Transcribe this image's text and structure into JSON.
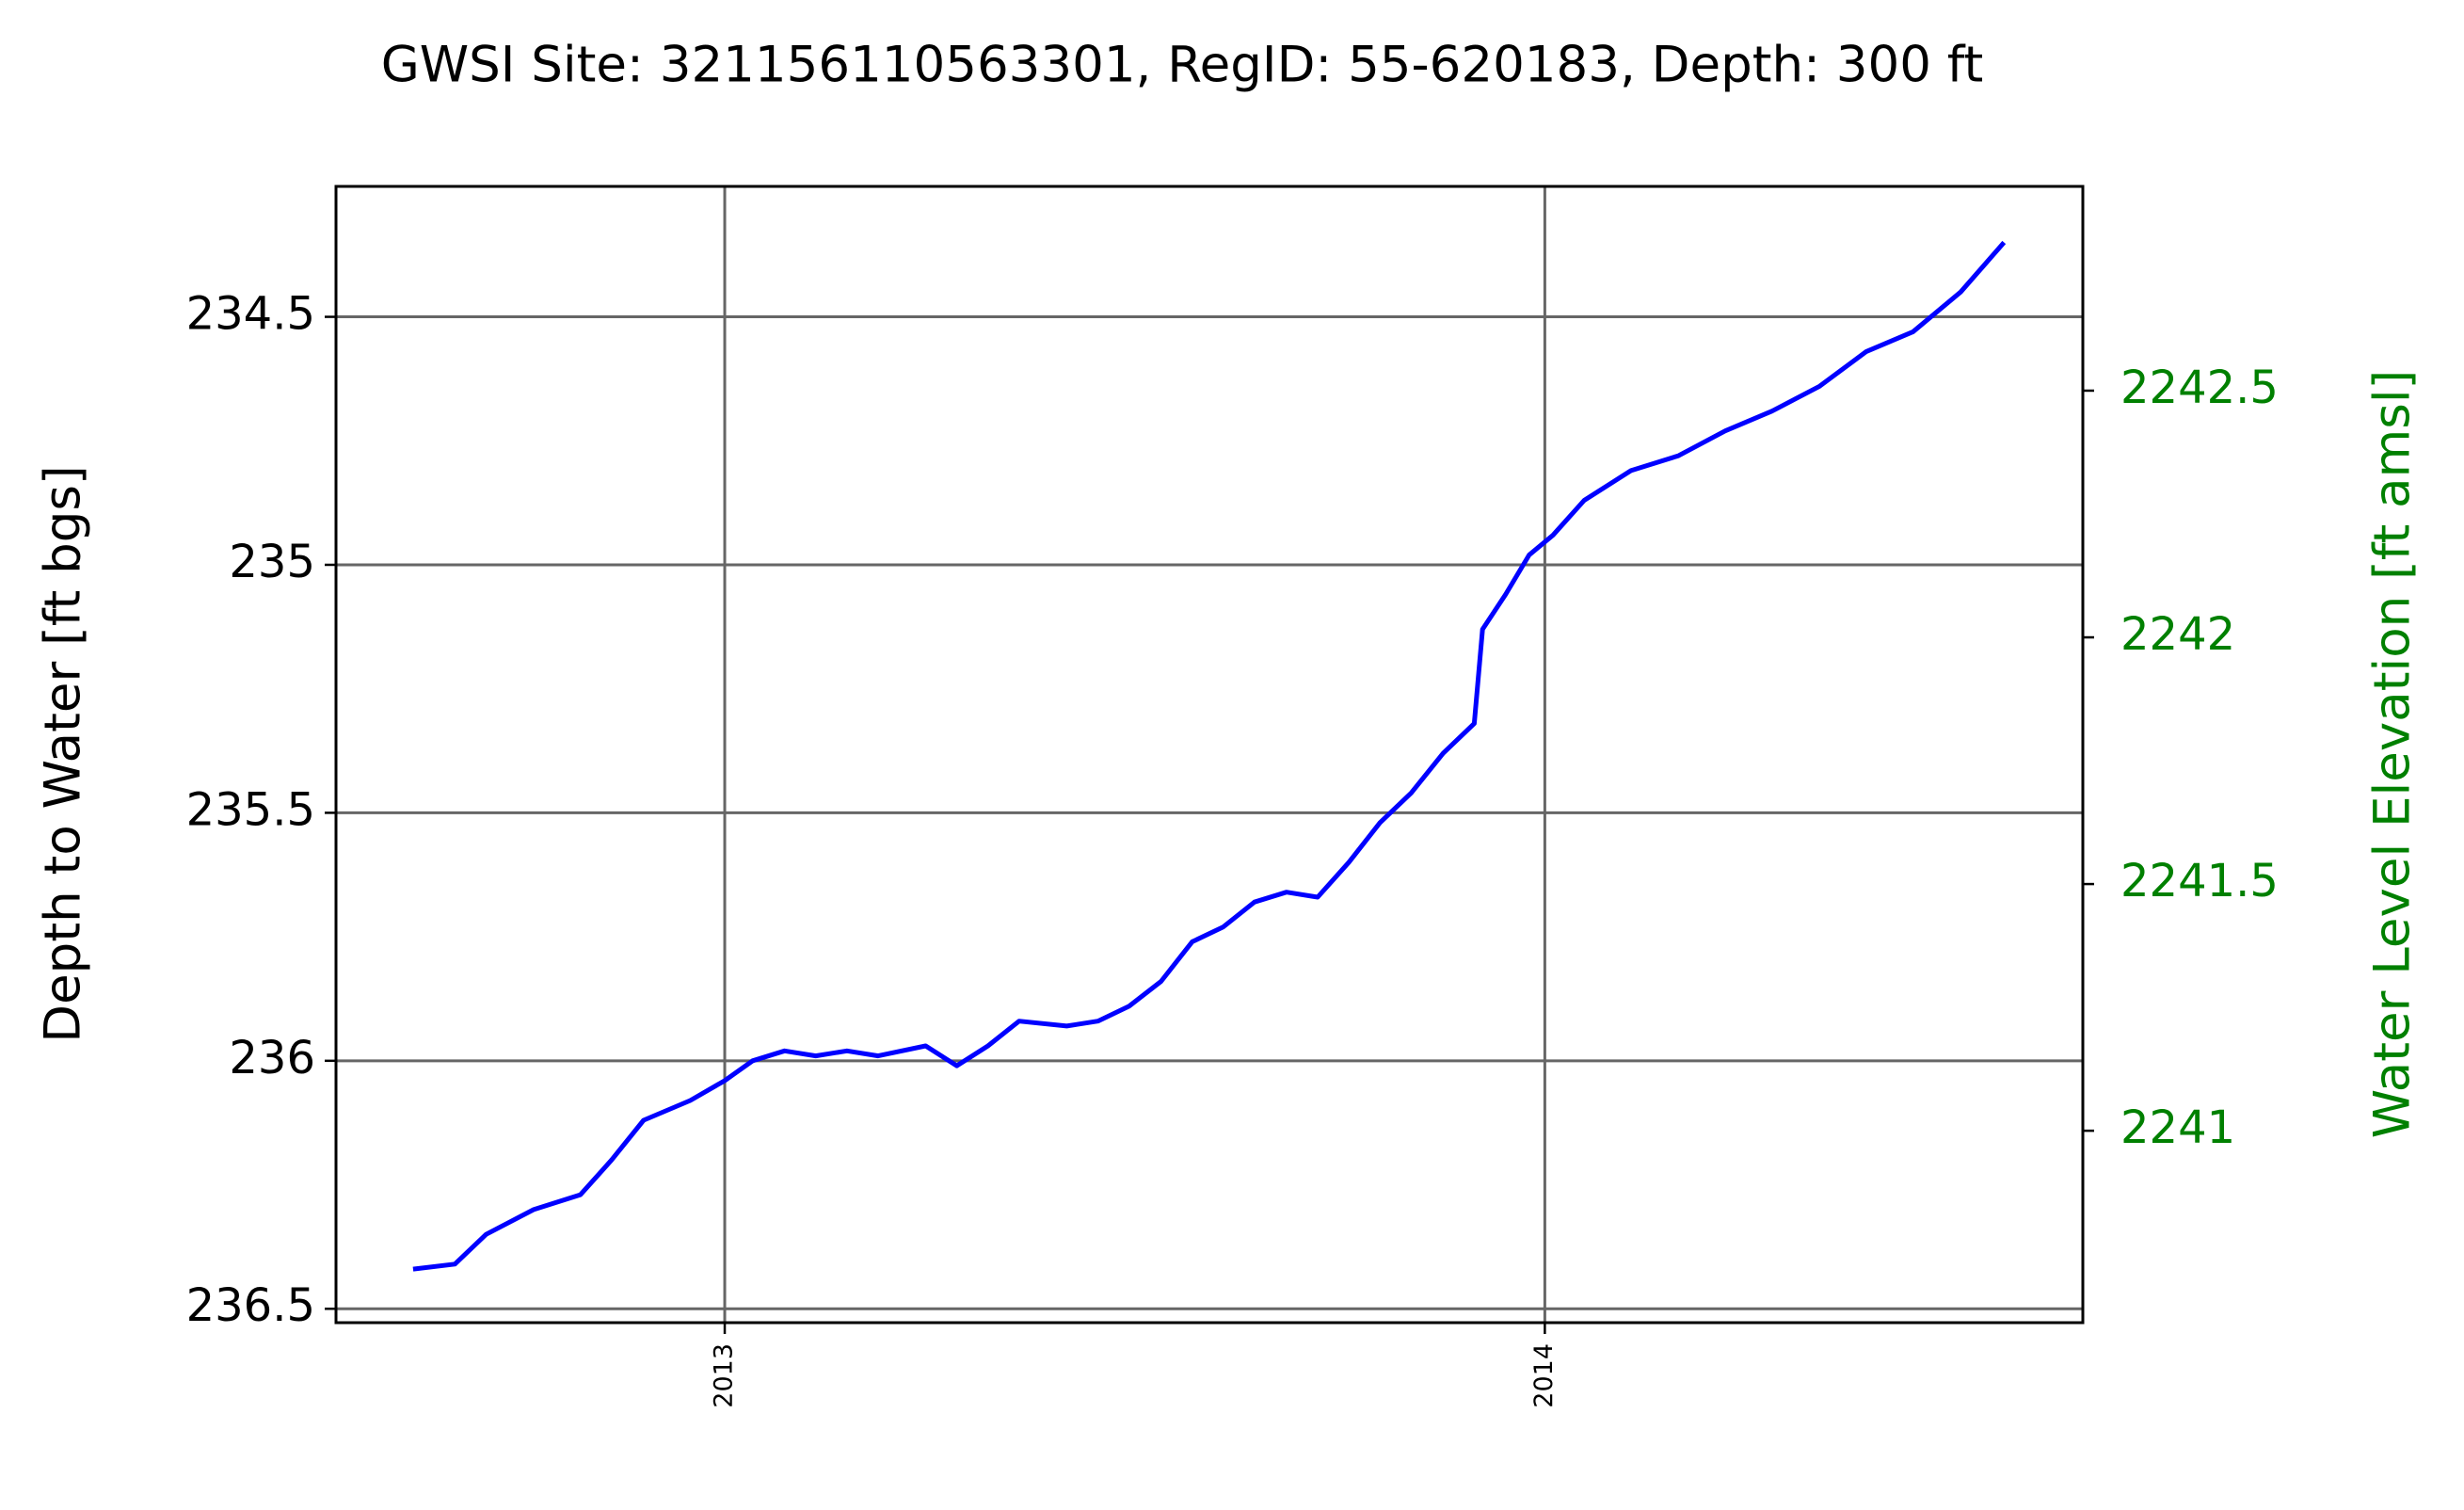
{
  "chart_data": {
    "type": "line",
    "title": "GWSI Site: 321156110563301, RegID: 55-620183, Depth: 300 ft",
    "y_label": "Depth to Water [ft bgs]",
    "y2_label": "Water Level Elevation [ft amsl]",
    "x": [
      2012.62,
      2012.671,
      2012.709,
      2012.767,
      2012.824,
      2012.862,
      2012.901,
      2012.958,
      2013.0,
      2013.034,
      2013.073,
      2013.111,
      2013.149,
      2013.187,
      2013.245,
      2013.283,
      2013.321,
      2013.359,
      2013.417,
      2013.455,
      2013.493,
      2013.532,
      2013.57,
      2013.608,
      2013.646,
      2013.685,
      2013.723,
      2013.761,
      2013.799,
      2013.837,
      2013.876,
      2013.914,
      2013.924,
      2013.952,
      2013.981,
      2014.01,
      2014.048,
      2014.105,
      2014.163,
      2014.22,
      2014.277,
      2014.335,
      2014.392,
      2014.449,
      2014.507,
      2014.56
    ],
    "series": [
      {
        "name": "Depth to Water",
        "color": "#0000ff",
        "values": [
          236.42,
          236.41,
          236.35,
          236.3,
          236.27,
          236.2,
          236.12,
          236.08,
          236.04,
          236.0,
          235.98,
          235.99,
          235.98,
          235.99,
          235.97,
          236.01,
          235.97,
          235.92,
          235.93,
          235.92,
          235.89,
          235.84,
          235.76,
          235.73,
          235.68,
          235.66,
          235.67,
          235.6,
          235.52,
          235.46,
          235.38,
          235.32,
          235.13,
          235.06,
          234.98,
          234.94,
          234.87,
          234.81,
          234.78,
          234.73,
          234.69,
          234.64,
          234.57,
          234.53,
          234.45,
          234.35
        ]
      }
    ],
    "xlim": [
      2012.526,
      2014.656
    ],
    "xticks": [
      2013,
      2014
    ],
    "ylim": [
      236.528,
      234.237
    ],
    "yticks": [
      236.5,
      236.0,
      235.5,
      235.0,
      234.5
    ],
    "y2lim": [
      2240.611,
      2242.914
    ],
    "y2ticks": [
      2241.0,
      2241.5,
      2242.0,
      2242.5
    ],
    "y2_color": "#008000",
    "grid": true
  }
}
